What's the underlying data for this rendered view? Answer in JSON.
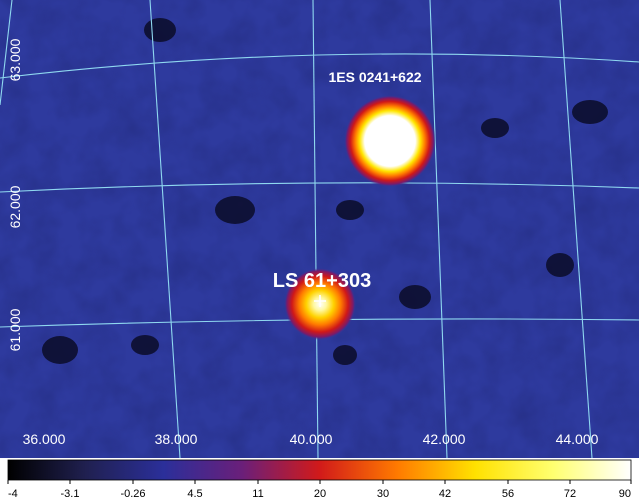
{
  "sky_map": {
    "ra_ticks": [
      "36.000",
      "38.000",
      "40.000",
      "42.000",
      "44.000"
    ],
    "dec_ticks": [
      "63.000",
      "62.000",
      "61.000"
    ],
    "grid_color": "#8fd8f0",
    "background_color": "#2e3a9e",
    "sources": [
      {
        "label": "1ES 0241+622",
        "marker": "none"
      },
      {
        "label": "LS 61+303",
        "marker": "+"
      }
    ]
  },
  "colorbar": {
    "ticks": [
      "-4",
      "-3.1",
      "-0.26",
      "4.5",
      "11",
      "20",
      "30",
      "42",
      "56",
      "72",
      "90"
    ],
    "colors": [
      "#000000",
      "#202050",
      "#2b2f9a",
      "#6a1f7a",
      "#d11a1a",
      "#ff7a00",
      "#ffe100",
      "#ffff70",
      "#ffffff"
    ]
  }
}
